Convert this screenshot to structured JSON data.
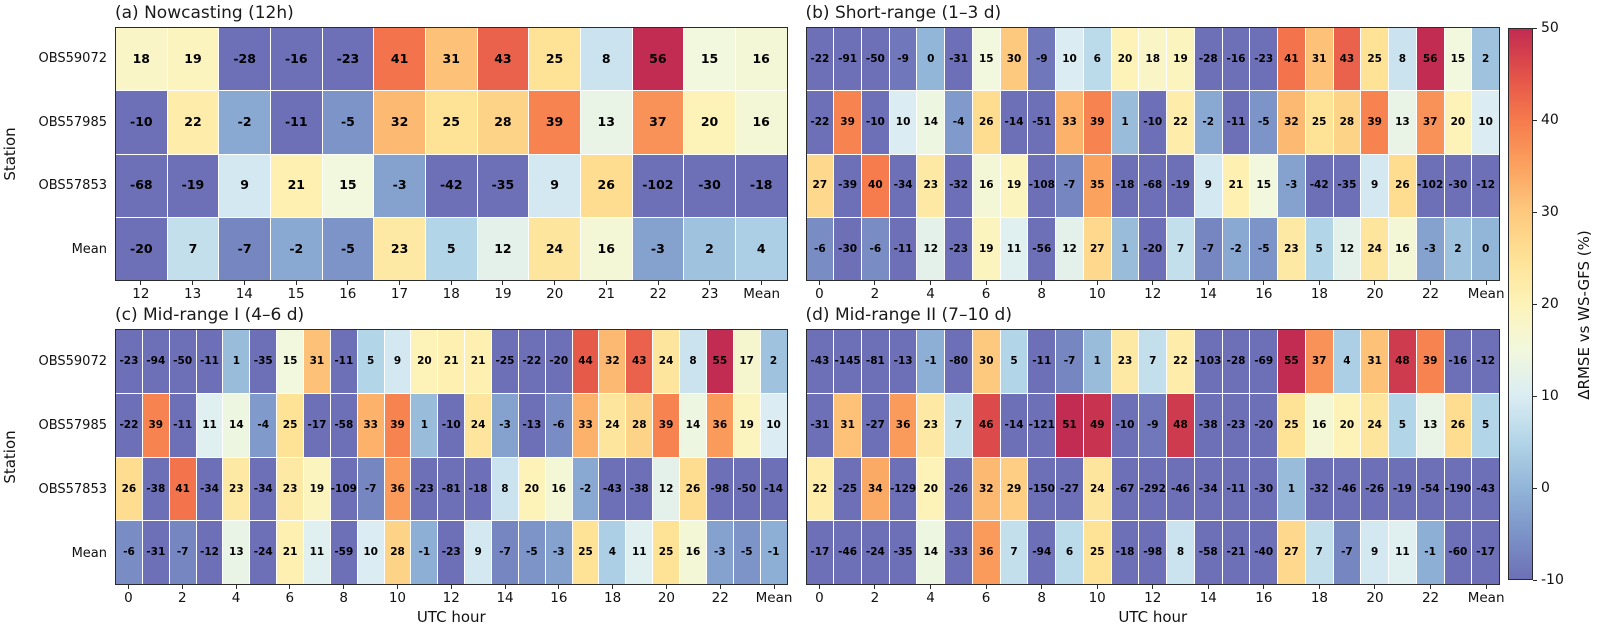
{
  "figure": {
    "y_axis_label": "Station",
    "stations": [
      "OBS59072",
      "OBS57985",
      "OBS57853",
      "Mean"
    ]
  },
  "colorbar": {
    "label": "ΔRMSE vs WS-GFS (%)",
    "vmin": -10,
    "vmax": 50,
    "ticks": [
      50,
      40,
      30,
      20,
      10,
      0,
      -10
    ],
    "stops": [
      {
        "v": -10,
        "c": "#6d70b6"
      },
      {
        "v": -5,
        "c": "#7c94c8"
      },
      {
        "v": 0,
        "c": "#92b6d8"
      },
      {
        "v": 5,
        "c": "#b3d5e8"
      },
      {
        "v": 10,
        "c": "#dbedf3"
      },
      {
        "v": 15,
        "c": "#f2f8dd"
      },
      {
        "v": 20,
        "c": "#fdf3b8"
      },
      {
        "v": 25,
        "c": "#fee296"
      },
      {
        "v": 30,
        "c": "#fdc97e"
      },
      {
        "v": 35,
        "c": "#fba25f"
      },
      {
        "v": 40,
        "c": "#f67b4d"
      },
      {
        "v": 45,
        "c": "#e25249"
      },
      {
        "v": 50,
        "c": "#c22b52"
      }
    ]
  },
  "chart_data": [
    {
      "type": "heatmap",
      "title": "(a) Nowcasting (12h)",
      "x_label": "",
      "columns": [
        "12",
        "13",
        "14",
        "15",
        "16",
        "17",
        "18",
        "19",
        "20",
        "21",
        "22",
        "23",
        "Mean"
      ],
      "rows": [
        "OBS59072",
        "OBS57985",
        "OBS57853",
        "Mean"
      ],
      "x_tick_labels": [
        {
          "col": 0,
          "label": "12"
        },
        {
          "col": 1,
          "label": "13"
        },
        {
          "col": 2,
          "label": "14"
        },
        {
          "col": 3,
          "label": "15"
        },
        {
          "col": 4,
          "label": "16"
        },
        {
          "col": 5,
          "label": "17"
        },
        {
          "col": 6,
          "label": "18"
        },
        {
          "col": 7,
          "label": "19"
        },
        {
          "col": 8,
          "label": "20"
        },
        {
          "col": 9,
          "label": "21"
        },
        {
          "col": 10,
          "label": "22"
        },
        {
          "col": 11,
          "label": "23"
        },
        {
          "col": 12,
          "label": "Mean"
        }
      ],
      "values": [
        [
          18,
          19,
          -28,
          -16,
          -23,
          41,
          31,
          43,
          25,
          8,
          56,
          15,
          16
        ],
        [
          -10,
          22,
          -2,
          -11,
          -5,
          32,
          25,
          28,
          39,
          13,
          37,
          20,
          16
        ],
        [
          -68,
          -19,
          9,
          21,
          15,
          -3,
          -42,
          -35,
          9,
          26,
          -102,
          -30,
          -18
        ],
        [
          -20,
          7,
          -7,
          -2,
          -5,
          23,
          5,
          12,
          24,
          16,
          -3,
          2,
          4
        ]
      ],
      "vmin": -10,
      "vmax": 50
    },
    {
      "type": "heatmap",
      "title": "(b) Short-range (1–3 d)",
      "x_label": "",
      "columns": [
        "0",
        "1",
        "2",
        "3",
        "4",
        "5",
        "6",
        "7",
        "8",
        "9",
        "10",
        "11",
        "12",
        "13",
        "14",
        "15",
        "16",
        "17",
        "18",
        "19",
        "20",
        "21",
        "22",
        "23",
        "Mean"
      ],
      "rows": [
        "OBS59072",
        "OBS57985",
        "OBS57853",
        "Mean"
      ],
      "x_tick_labels": [
        {
          "col": 0,
          "label": "0"
        },
        {
          "col": 2,
          "label": "2"
        },
        {
          "col": 4,
          "label": "4"
        },
        {
          "col": 6,
          "label": "6"
        },
        {
          "col": 8,
          "label": "8"
        },
        {
          "col": 10,
          "label": "10"
        },
        {
          "col": 12,
          "label": "12"
        },
        {
          "col": 14,
          "label": "14"
        },
        {
          "col": 16,
          "label": "16"
        },
        {
          "col": 18,
          "label": "18"
        },
        {
          "col": 20,
          "label": "20"
        },
        {
          "col": 22,
          "label": "22"
        },
        {
          "col": 24,
          "label": "Mean"
        }
      ],
      "values": [
        [
          -22,
          -91,
          -50,
          -9,
          0,
          -31,
          15,
          30,
          -9,
          10,
          6,
          20,
          18,
          19,
          -28,
          -16,
          -23,
          41,
          31,
          43,
          25,
          8,
          56,
          15,
          2
        ],
        [
          -22,
          39,
          -10,
          10,
          14,
          -4,
          26,
          -14,
          -51,
          33,
          39,
          1,
          -10,
          22,
          -2,
          -11,
          -5,
          32,
          25,
          28,
          39,
          13,
          37,
          20,
          10
        ],
        [
          27,
          -39,
          40,
          -34,
          23,
          -32,
          16,
          19,
          -108,
          -7,
          35,
          -18,
          -68,
          -19,
          9,
          21,
          15,
          -3,
          -42,
          -35,
          9,
          26,
          -102,
          -30,
          -12
        ],
        [
          -6,
          -30,
          -6,
          -11,
          12,
          -23,
          19,
          11,
          -56,
          12,
          27,
          1,
          -20,
          7,
          -7,
          -2,
          -5,
          23,
          5,
          12,
          24,
          16,
          -3,
          2,
          0
        ]
      ],
      "vmin": -10,
      "vmax": 50
    },
    {
      "type": "heatmap",
      "title": "(c) Mid-range I (4–6 d)",
      "x_label": "UTC hour",
      "columns": [
        "0",
        "1",
        "2",
        "3",
        "4",
        "5",
        "6",
        "7",
        "8",
        "9",
        "10",
        "11",
        "12",
        "13",
        "14",
        "15",
        "16",
        "17",
        "18",
        "19",
        "20",
        "21",
        "22",
        "23",
        "Mean"
      ],
      "rows": [
        "OBS59072",
        "OBS57985",
        "OBS57853",
        "Mean"
      ],
      "x_tick_labels": [
        {
          "col": 0,
          "label": "0"
        },
        {
          "col": 2,
          "label": "2"
        },
        {
          "col": 4,
          "label": "4"
        },
        {
          "col": 6,
          "label": "6"
        },
        {
          "col": 8,
          "label": "8"
        },
        {
          "col": 10,
          "label": "10"
        },
        {
          "col": 12,
          "label": "12"
        },
        {
          "col": 14,
          "label": "14"
        },
        {
          "col": 16,
          "label": "16"
        },
        {
          "col": 18,
          "label": "18"
        },
        {
          "col": 20,
          "label": "20"
        },
        {
          "col": 22,
          "label": "22"
        },
        {
          "col": 24,
          "label": "Mean"
        }
      ],
      "values": [
        [
          -23,
          -94,
          -50,
          -11,
          1,
          -35,
          15,
          31,
          -11,
          5,
          9,
          20,
          21,
          21,
          -25,
          -22,
          -20,
          44,
          32,
          43,
          24,
          8,
          55,
          17,
          2
        ],
        [
          -22,
          39,
          -11,
          11,
          14,
          -4,
          25,
          -17,
          -58,
          33,
          39,
          1,
          -10,
          24,
          -3,
          -13,
          -6,
          33,
          24,
          28,
          39,
          14,
          36,
          19,
          10
        ],
        [
          26,
          -38,
          41,
          -34,
          23,
          -34,
          23,
          19,
          -109,
          -7,
          36,
          -23,
          -81,
          -18,
          8,
          20,
          16,
          -2,
          -43,
          -38,
          12,
          26,
          -98,
          -50,
          -14
        ],
        [
          -6,
          -31,
          -7,
          -12,
          13,
          -24,
          21,
          11,
          -59,
          10,
          28,
          -1,
          -23,
          9,
          -7,
          -5,
          -3,
          25,
          4,
          11,
          25,
          16,
          -3,
          -5,
          -1
        ]
      ],
      "vmin": -10,
      "vmax": 50
    },
    {
      "type": "heatmap",
      "title": "(d) Mid-range II (7–10 d)",
      "x_label": "UTC hour",
      "columns": [
        "0",
        "1",
        "2",
        "3",
        "4",
        "5",
        "6",
        "7",
        "8",
        "9",
        "10",
        "11",
        "12",
        "13",
        "14",
        "15",
        "16",
        "17",
        "18",
        "19",
        "20",
        "21",
        "22",
        "23",
        "Mean"
      ],
      "rows": [
        "OBS59072",
        "OBS57985",
        "OBS57853",
        "Mean"
      ],
      "x_tick_labels": [
        {
          "col": 0,
          "label": "0"
        },
        {
          "col": 2,
          "label": "2"
        },
        {
          "col": 4,
          "label": "4"
        },
        {
          "col": 6,
          "label": "6"
        },
        {
          "col": 8,
          "label": "8"
        },
        {
          "col": 10,
          "label": "10"
        },
        {
          "col": 12,
          "label": "12"
        },
        {
          "col": 14,
          "label": "14"
        },
        {
          "col": 16,
          "label": "16"
        },
        {
          "col": 18,
          "label": "18"
        },
        {
          "col": 20,
          "label": "20"
        },
        {
          "col": 22,
          "label": "22"
        },
        {
          "col": 24,
          "label": "Mean"
        }
      ],
      "values": [
        [
          -43,
          -145,
          -81,
          -13,
          -1,
          -80,
          30,
          5,
          -11,
          -7,
          1,
          23,
          7,
          22,
          -103,
          -28,
          -69,
          55,
          37,
          4,
          31,
          48,
          39,
          -16,
          -12
        ],
        [
          -31,
          31,
          -27,
          36,
          23,
          7,
          46,
          -14,
          -121,
          51,
          49,
          -10,
          -9,
          48,
          -38,
          -23,
          -20,
          25,
          16,
          20,
          24,
          5,
          13,
          26,
          5
        ],
        [
          22,
          -25,
          34,
          -129,
          20,
          -26,
          32,
          29,
          -150,
          -27,
          24,
          -67,
          -292,
          -46,
          -34,
          -11,
          -30,
          1,
          -32,
          -46,
          -26,
          -19,
          -54,
          -190,
          -43
        ],
        [
          -17,
          -46,
          -24,
          -35,
          14,
          -33,
          36,
          7,
          -94,
          6,
          25,
          -18,
          -98,
          8,
          -58,
          -21,
          -40,
          27,
          7,
          -7,
          9,
          11,
          -1,
          -60,
          -17
        ]
      ],
      "vmin": -10,
      "vmax": 50
    }
  ]
}
